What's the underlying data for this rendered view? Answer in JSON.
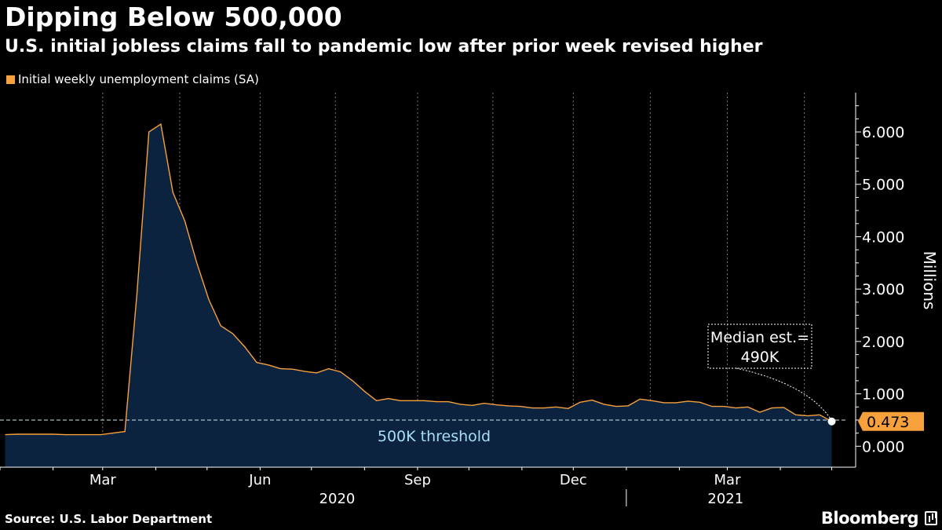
{
  "header": {
    "title": "Dipping Below 500,000",
    "subtitle": "U.S. initial jobless claims fall to pandemic low after prior week revised higher"
  },
  "legend": {
    "label": "Initial weekly unemployment claims (SA)",
    "swatch_color": "#f7a13d"
  },
  "footer": {
    "source": "Source: U.S. Labor Department",
    "brand": "Bloomberg"
  },
  "colors": {
    "background": "#000000",
    "line": "#f7a13d",
    "area": "#0c2340",
    "threshold": "#a9dff2",
    "grid": "#777777",
    "last_value_bg": "#f7a13d"
  },
  "chart_data": {
    "type": "area",
    "title": "Dipping Below 500,000",
    "subtitle": "U.S. initial jobless claims fall to pandemic low after prior week revised higher",
    "ylabel": "Millions",
    "xlabel": "",
    "ylim": [
      -0.4,
      6.75
    ],
    "yticks": [
      0,
      1,
      2,
      3,
      4,
      5,
      6
    ],
    "ytick_labels": [
      "0.000",
      "1.000",
      "2.000",
      "3.000",
      "4.000",
      "5.000",
      "6.000"
    ],
    "y_axis_position": "right",
    "grid": "vertical dotted",
    "x_tick_labels": [
      "Mar",
      "Jun",
      "Sep",
      "Dec",
      "Mar"
    ],
    "x_tick_dates": [
      "2020-03-01",
      "2020-06-01",
      "2020-09-01",
      "2020-12-01",
      "2021-03-01"
    ],
    "year_labels": [
      {
        "label": "2020",
        "date": "2020-07-16"
      },
      {
        "label": "2021",
        "date": "2021-02-28"
      }
    ],
    "xlim": [
      "2020-01-01",
      "2021-05-15"
    ],
    "series": [
      {
        "name": "Initial weekly unemployment claims (SA)",
        "dates": [
          "2020-01-04",
          "2020-01-11",
          "2020-01-18",
          "2020-01-25",
          "2020-02-01",
          "2020-02-08",
          "2020-02-15",
          "2020-02-22",
          "2020-02-29",
          "2020-03-07",
          "2020-03-14",
          "2020-03-21",
          "2020-03-28",
          "2020-04-04",
          "2020-04-11",
          "2020-04-18",
          "2020-04-25",
          "2020-05-02",
          "2020-05-09",
          "2020-05-16",
          "2020-05-23",
          "2020-05-30",
          "2020-06-06",
          "2020-06-13",
          "2020-06-20",
          "2020-06-27",
          "2020-07-04",
          "2020-07-11",
          "2020-07-18",
          "2020-07-25",
          "2020-08-01",
          "2020-08-08",
          "2020-08-15",
          "2020-08-22",
          "2020-08-29",
          "2020-09-05",
          "2020-09-12",
          "2020-09-19",
          "2020-09-26",
          "2020-10-03",
          "2020-10-10",
          "2020-10-17",
          "2020-10-24",
          "2020-10-31",
          "2020-11-07",
          "2020-11-14",
          "2020-11-21",
          "2020-11-28",
          "2020-12-05",
          "2020-12-12",
          "2020-12-19",
          "2020-12-26",
          "2021-01-02",
          "2021-01-09",
          "2021-01-16",
          "2021-01-23",
          "2021-01-30",
          "2021-02-06",
          "2021-02-13",
          "2021-02-20",
          "2021-02-27",
          "2021-03-06",
          "2021-03-13",
          "2021-03-20",
          "2021-03-27",
          "2021-04-03",
          "2021-04-10",
          "2021-04-17",
          "2021-04-24"
        ],
        "values": [
          0.22,
          0.23,
          0.23,
          0.23,
          0.23,
          0.22,
          0.22,
          0.22,
          0.22,
          0.25,
          0.28,
          2.9,
          6.0,
          6.15,
          4.85,
          4.3,
          3.5,
          2.8,
          2.3,
          2.15,
          1.9,
          1.6,
          1.55,
          1.48,
          1.47,
          1.43,
          1.4,
          1.48,
          1.42,
          1.25,
          1.05,
          0.87,
          0.91,
          0.87,
          0.87,
          0.87,
          0.85,
          0.85,
          0.8,
          0.78,
          0.82,
          0.79,
          0.77,
          0.76,
          0.73,
          0.73,
          0.75,
          0.72,
          0.84,
          0.88,
          0.8,
          0.76,
          0.77,
          0.9,
          0.87,
          0.83,
          0.83,
          0.86,
          0.84,
          0.76,
          0.76,
          0.73,
          0.75,
          0.65,
          0.73,
          0.74,
          0.6,
          0.58,
          0.6
        ]
      }
    ],
    "last_value": {
      "date": "2021-05-01",
      "value": 0.473,
      "label": "0.473"
    },
    "threshold": {
      "value": 0.5,
      "label": "500K threshold"
    },
    "annotation": {
      "line1": "Median est.=",
      "line2": "490K",
      "target_date": "2021-05-01",
      "target_value": 0.49
    }
  }
}
